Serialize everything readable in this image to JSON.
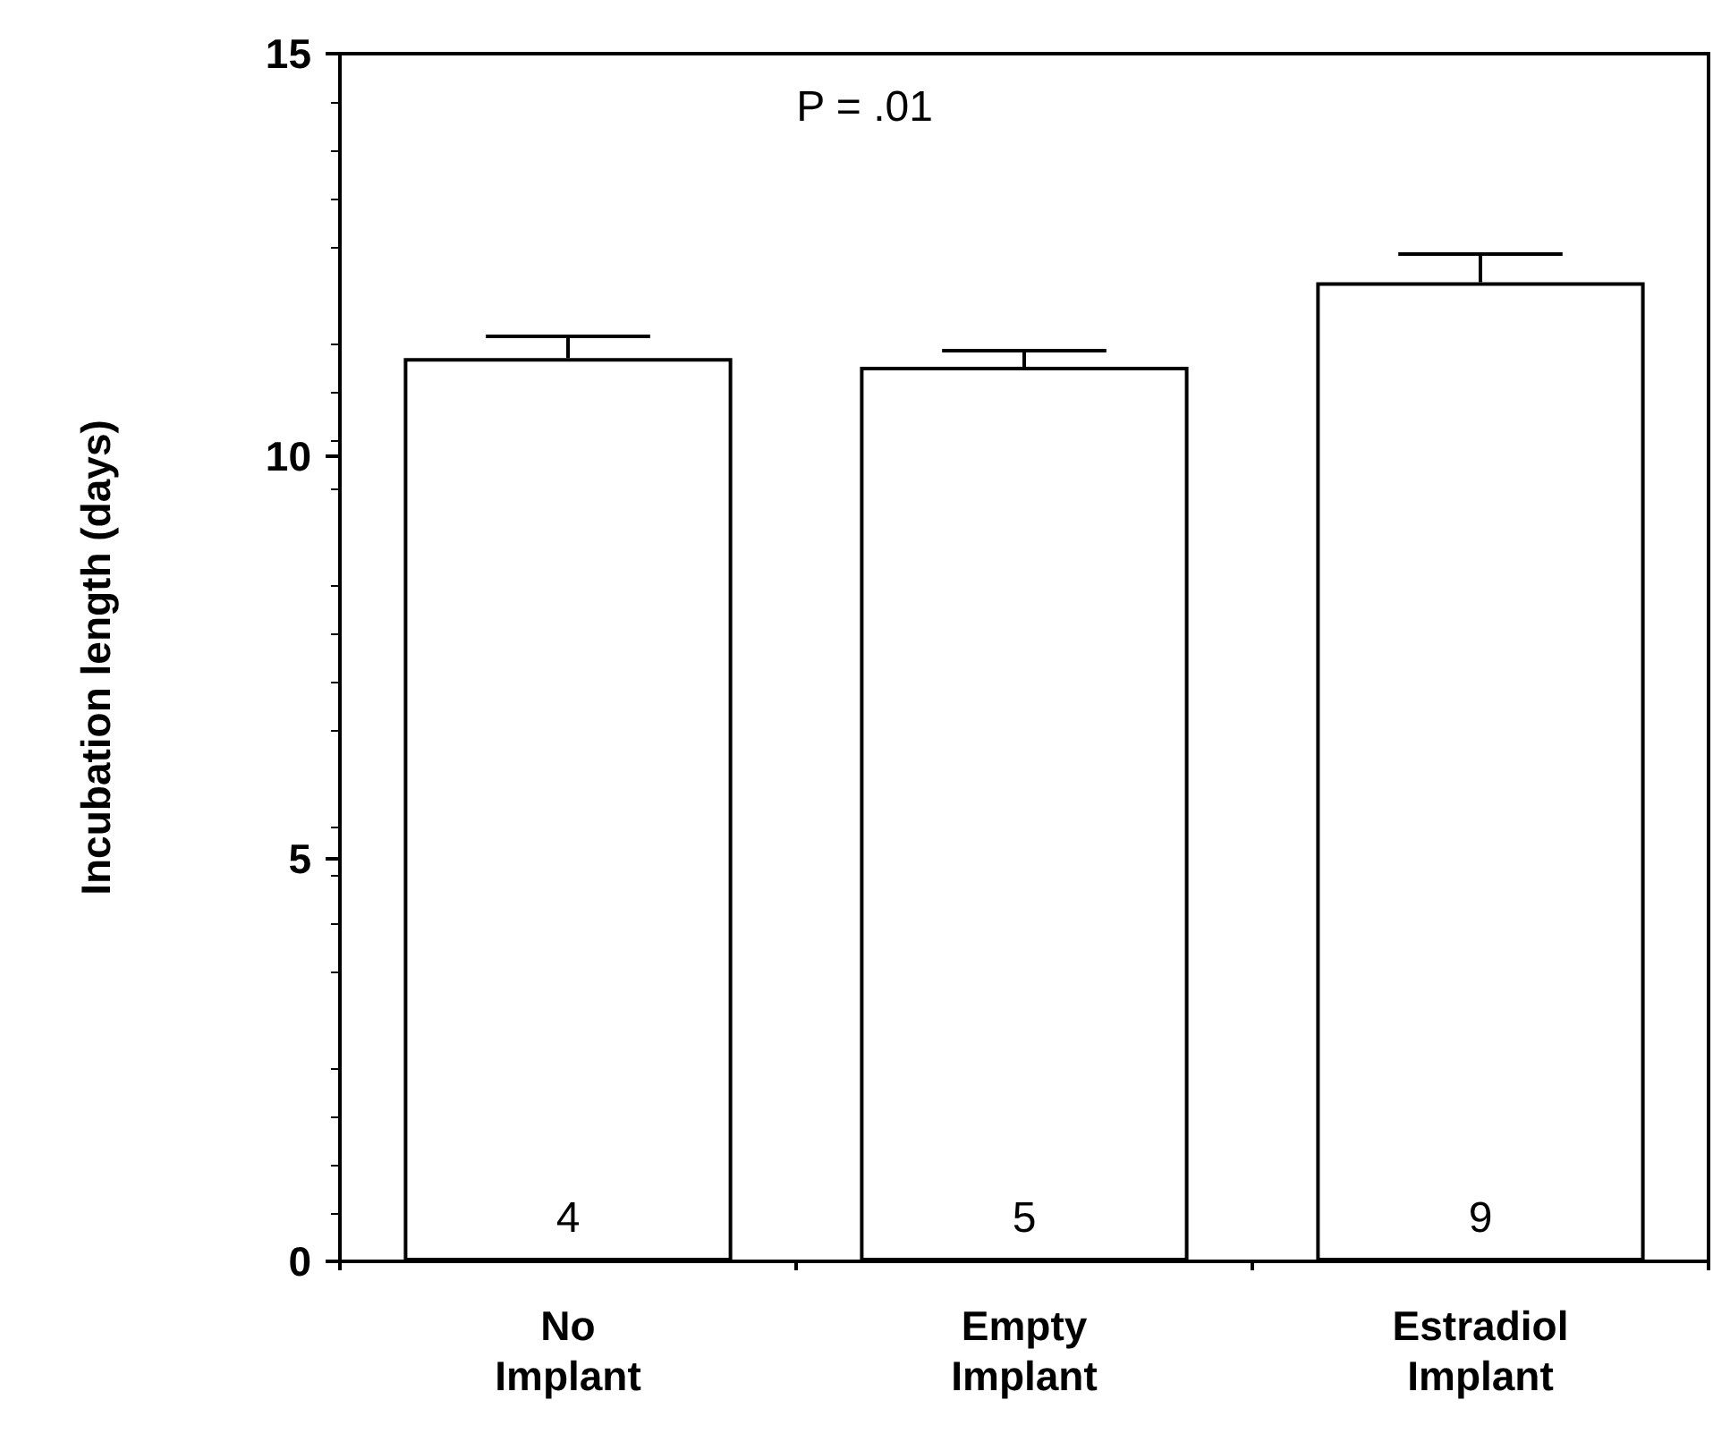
{
  "chart_data": {
    "type": "bar",
    "ylabel": "Incubation length (days)",
    "categories": [
      "No\nImplant",
      "Empty\nImplant",
      "Estradiol\nImplant"
    ],
    "values": [
      11.22,
      11.11,
      12.16
    ],
    "errors": [
      [
        11.22,
        11.49
      ],
      [
        11.11,
        11.31
      ],
      [
        12.16,
        12.51
      ]
    ],
    "color": "#ffffff",
    "ylim": [
      0,
      15
    ],
    "yticks": [
      0,
      5,
      10,
      15
    ],
    "grid": false,
    "annotations": [
      "P = .01",
      "4",
      "5",
      "9"
    ]
  }
}
